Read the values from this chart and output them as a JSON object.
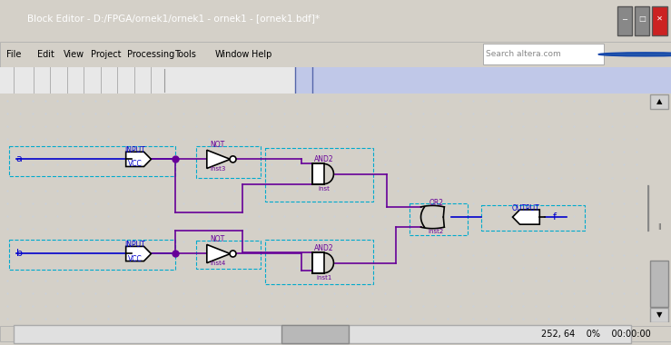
{
  "title": "Block Editor - D:/FPGA/ornek1/ornek1 - ornek1 - [ornek1.bdf]*",
  "bg_color": "#d4d0c8",
  "canvas_bg": "#f0f4ff",
  "dot_color": "#c8d0e0",
  "wire_color_blue": "#0000cc",
  "wire_color_purple": "#660099",
  "gate_fill": "#ffffff",
  "gate_stroke": "#000000",
  "label_color_blue": "#0000cc",
  "label_color_purple": "#660099",
  "label_color_red": "#cc0000",
  "select_box_color": "#00aacc",
  "menu_items": [
    "File",
    "Edit",
    "View",
    "Project",
    "Processing",
    "Tools",
    "Window",
    "Help"
  ],
  "status_text": "252, 64    0%    00:00:00",
  "input_a_label": "a",
  "input_b_label": "b",
  "output_label": "f",
  "inst_labels": [
    "inst3",
    "inst4",
    "inst",
    "inst1",
    "inst2"
  ],
  "gate_labels": [
    "NOT",
    "NOT",
    "AND2",
    "AND2",
    "OR2",
    "OUTPUT"
  ],
  "vcc_label": "VCC",
  "input_label": "INPUT"
}
